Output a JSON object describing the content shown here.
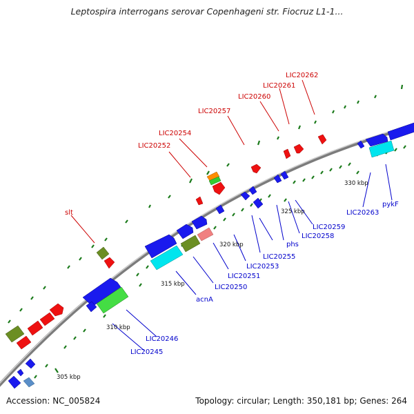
{
  "title": "Leptospira interrogans serovar Copenhageni str. Fiocruz L1-1...",
  "footer": {
    "accession": "Accession: NC_005824",
    "summary": "Topology: circular; Length: 350,181 bp; Genes: 264"
  },
  "tick_labels": [
    "305 kbp",
    "310 kbp",
    "315 kbp",
    "320 kbp",
    "325 kbp",
    "330 kbp"
  ],
  "gene_labels_forward": [
    "slt",
    "LIC20252",
    "LIC20254",
    "LIC20257",
    "LIC20260",
    "LIC20261",
    "LIC20262"
  ],
  "gene_labels_reverse": [
    "LIC20245",
    "LIC20246",
    "acnA",
    "LIC20250",
    "LIC20251",
    "LIC20253",
    "LIC20255",
    "phs",
    "LIC20258",
    "LIC20259",
    "LIC20263",
    "pykF"
  ],
  "colors": {
    "forward_label": "#cc0000",
    "reverse_label": "#0000cc",
    "backbone": "#8a8a8a",
    "tick": "#1a7a1a",
    "gene_red": "#ee0000",
    "gene_blue": "#1a1aee",
    "gene_olive": "#6b8e23",
    "gene_cyan": "#00e5ee",
    "gene_green": "#44dd44",
    "gene_orange": "#ff8c00",
    "gene_pink": "#f08080",
    "gene_steel": "#4682b4"
  }
}
